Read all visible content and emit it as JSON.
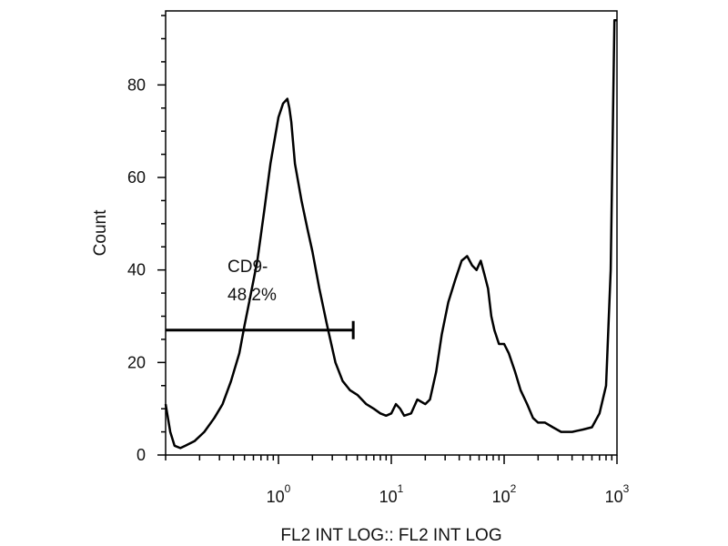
{
  "chart_data": {
    "type": "line",
    "title": "",
    "xlabel": "FL2 INT LOG:: FL2 INT LOG",
    "ylabel": "Count",
    "x_scale": "log",
    "xlim": [
      0.1,
      1000
    ],
    "ylim": [
      0,
      96
    ],
    "y_ticks": [
      0,
      20,
      40,
      60,
      80
    ],
    "x_ticks": [
      {
        "value": 1,
        "base": "10",
        "exp": "0"
      },
      {
        "value": 10,
        "base": "10",
        "exp": "1"
      },
      {
        "value": 100,
        "base": "10",
        "exp": "2"
      },
      {
        "value": 1000,
        "base": "10",
        "exp": "3"
      }
    ],
    "grid": false,
    "series": [
      {
        "x": [
          0.1,
          0.11,
          0.12,
          0.135,
          0.15,
          0.18,
          0.22,
          0.27,
          0.32,
          0.38,
          0.45,
          0.5,
          0.55,
          0.65,
          0.75,
          0.85,
          1.0,
          1.1,
          1.2,
          1.25,
          1.3,
          1.4,
          1.6,
          1.8,
          2.0,
          2.3,
          2.7,
          3.2,
          3.7,
          4.3,
          5.0,
          6.0,
          7.0,
          8.0,
          9.0,
          10,
          11,
          12,
          13,
          15,
          17,
          20,
          22,
          25,
          28,
          32,
          37,
          42,
          47,
          52,
          57,
          62,
          67,
          72,
          77,
          82,
          90,
          100,
          110,
          125,
          140,
          160,
          180,
          200,
          230,
          270,
          320,
          400,
          500,
          600,
          700,
          800,
          880,
          950,
          980,
          990
        ],
        "values": [
          11,
          5,
          2,
          1.5,
          2,
          3,
          5,
          8,
          11,
          16,
          22,
          28,
          33,
          42,
          53,
          63,
          73,
          76,
          77,
          75,
          72,
          63,
          55,
          49,
          44,
          36,
          28,
          20,
          16,
          14,
          13,
          11,
          10,
          9,
          8.5,
          9,
          11,
          10,
          8.5,
          9,
          12,
          11,
          12,
          18,
          26,
          33,
          38,
          42,
          43,
          41,
          40,
          42,
          39,
          36,
          30,
          27,
          24,
          24,
          22,
          18,
          14,
          11,
          8,
          7,
          7,
          6,
          5,
          5,
          5.5,
          6,
          9,
          15,
          40,
          94,
          94,
          94
        ]
      }
    ],
    "gate": {
      "label_line1": "CD9-",
      "label_line2": "48,2%",
      "x_start": 0.1,
      "x_end": 4.6,
      "y": 27
    }
  },
  "colors": {
    "line": "#000000",
    "axis": "#000000",
    "background": "#ffffff"
  }
}
